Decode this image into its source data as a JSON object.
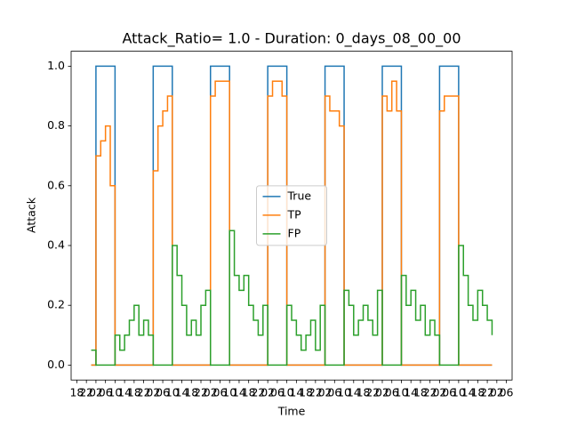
{
  "chart_data": {
    "type": "line",
    "step": "post",
    "title": "Attack_Ratio= 1.0 - Duration: 0_days_08_00_00",
    "x_label": "Time",
    "y_label": "Attack",
    "x": [
      0,
      2,
      4,
      6,
      8,
      10,
      12,
      14,
      16,
      18,
      20,
      22,
      24,
      26,
      28,
      30,
      32,
      34,
      36,
      38,
      40,
      42,
      44,
      46,
      48,
      50,
      52,
      54,
      56,
      58,
      60,
      62,
      64,
      66,
      68,
      70,
      72,
      74,
      76,
      78,
      80,
      82,
      84,
      86,
      88,
      90,
      92,
      94,
      96,
      98,
      100,
      102,
      104,
      106,
      108,
      110,
      112,
      114,
      116,
      118,
      120,
      122,
      124,
      126,
      128,
      130,
      132,
      134,
      136,
      138,
      140,
      142,
      144,
      146,
      148,
      150,
      152,
      154,
      156,
      158,
      160,
      162,
      164,
      166,
      168
    ],
    "series": [
      {
        "name": "True",
        "color": "#1f77b4",
        "values": [
          0,
          1,
          1,
          1,
          1,
          0,
          0,
          0,
          0,
          0,
          0,
          0,
          0,
          1,
          1,
          1,
          1,
          0,
          0,
          0,
          0,
          0,
          0,
          0,
          0,
          1,
          1,
          1,
          1,
          0,
          0,
          0,
          0,
          0,
          0,
          0,
          0,
          1,
          1,
          1,
          1,
          0,
          0,
          0,
          0,
          0,
          0,
          0,
          0,
          1,
          1,
          1,
          1,
          0,
          0,
          0,
          0,
          0,
          0,
          0,
          0,
          1,
          1,
          1,
          1,
          0,
          0,
          0,
          0,
          0,
          0,
          0,
          0,
          1,
          1,
          1,
          1,
          0,
          0,
          0,
          0,
          0,
          0,
          0,
          0
        ]
      },
      {
        "name": "TP",
        "color": "#ff7f0e",
        "values": [
          0,
          0.7,
          0.75,
          0.8,
          0.6,
          0,
          0,
          0,
          0,
          0,
          0,
          0,
          0,
          0.65,
          0.8,
          0.85,
          0.9,
          0,
          0,
          0,
          0,
          0,
          0,
          0,
          0,
          0.9,
          0.95,
          0.95,
          0.95,
          0,
          0,
          0,
          0,
          0,
          0,
          0,
          0,
          0.9,
          0.95,
          0.95,
          0.9,
          0,
          0,
          0,
          0,
          0,
          0,
          0,
          0,
          0.9,
          0.85,
          0.85,
          0.8,
          0,
          0,
          0,
          0,
          0,
          0,
          0,
          0,
          0.9,
          0.85,
          0.95,
          0.85,
          0,
          0,
          0,
          0,
          0,
          0,
          0,
          0,
          0.85,
          0.9,
          0.9,
          0.9,
          0,
          0,
          0,
          0,
          0,
          0,
          0,
          0
        ]
      },
      {
        "name": "FP",
        "color": "#2ca02c",
        "values": [
          0.05,
          0,
          0,
          0,
          0,
          0.1,
          0.05,
          0.1,
          0.15,
          0.2,
          0.1,
          0.15,
          0.1,
          0,
          0,
          0,
          0,
          0.4,
          0.3,
          0.2,
          0.1,
          0.15,
          0.1,
          0.2,
          0.25,
          0,
          0,
          0,
          0,
          0.45,
          0.3,
          0.25,
          0.3,
          0.2,
          0.15,
          0.1,
          0.2,
          0,
          0,
          0,
          0,
          0.2,
          0.15,
          0.1,
          0.05,
          0.1,
          0.15,
          0.05,
          0.2,
          0,
          0,
          0,
          0,
          0.25,
          0.2,
          0.1,
          0.15,
          0.2,
          0.15,
          0.1,
          0.25,
          0,
          0,
          0,
          0,
          0.3,
          0.2,
          0.25,
          0.15,
          0.2,
          0.1,
          0.15,
          0.1,
          0,
          0,
          0,
          0,
          0.4,
          0.3,
          0.2,
          0.15,
          0.25,
          0.2,
          0.15,
          0.1
        ]
      }
    ],
    "xlim": [
      -8.4,
      176.4
    ],
    "ylim": [
      -0.05,
      1.05
    ],
    "xticks": [
      {
        "value": -6,
        "label": "18"
      },
      {
        "value": -2,
        "label": "22"
      },
      {
        "value": 2,
        "label": "02"
      },
      {
        "value": 6,
        "label": "06"
      },
      {
        "value": 10,
        "label": "10"
      },
      {
        "value": 14,
        "label": "14"
      },
      {
        "value": 18,
        "label": "18"
      },
      {
        "value": 22,
        "label": "22"
      },
      {
        "value": 26,
        "label": "02"
      },
      {
        "value": 30,
        "label": "06"
      },
      {
        "value": 34,
        "label": "10"
      },
      {
        "value": 38,
        "label": "14"
      },
      {
        "value": 42,
        "label": "18"
      },
      {
        "value": 46,
        "label": "22"
      },
      {
        "value": 50,
        "label": "02"
      },
      {
        "value": 54,
        "label": "06"
      },
      {
        "value": 58,
        "label": "10"
      },
      {
        "value": 62,
        "label": "14"
      },
      {
        "value": 66,
        "label": "18"
      },
      {
        "value": 70,
        "label": "22"
      },
      {
        "value": 74,
        "label": "02"
      },
      {
        "value": 78,
        "label": "06"
      },
      {
        "value": 82,
        "label": "10"
      },
      {
        "value": 86,
        "label": "14"
      },
      {
        "value": 90,
        "label": "18"
      },
      {
        "value": 94,
        "label": "22"
      },
      {
        "value": 98,
        "label": "02"
      },
      {
        "value": 102,
        "label": "06"
      },
      {
        "value": 106,
        "label": "10"
      },
      {
        "value": 110,
        "label": "14"
      },
      {
        "value": 114,
        "label": "18"
      },
      {
        "value": 118,
        "label": "22"
      },
      {
        "value": 122,
        "label": "02"
      },
      {
        "value": 126,
        "label": "06"
      },
      {
        "value": 130,
        "label": "10"
      },
      {
        "value": 134,
        "label": "14"
      },
      {
        "value": 138,
        "label": "18"
      },
      {
        "value": 142,
        "label": "22"
      },
      {
        "value": 146,
        "label": "02"
      },
      {
        "value": 150,
        "label": "06"
      },
      {
        "value": 154,
        "label": "10"
      },
      {
        "value": 158,
        "label": "14"
      },
      {
        "value": 162,
        "label": "18"
      },
      {
        "value": 166,
        "label": "22"
      },
      {
        "value": 170,
        "label": "02"
      },
      {
        "value": 174,
        "label": "06"
      }
    ],
    "yticks": [
      {
        "value": 0,
        "label": "0.0"
      },
      0.2,
      0.4,
      0.6,
      0.8,
      {
        "value": 1,
        "label": "1.0"
      }
    ],
    "legend": "center"
  }
}
